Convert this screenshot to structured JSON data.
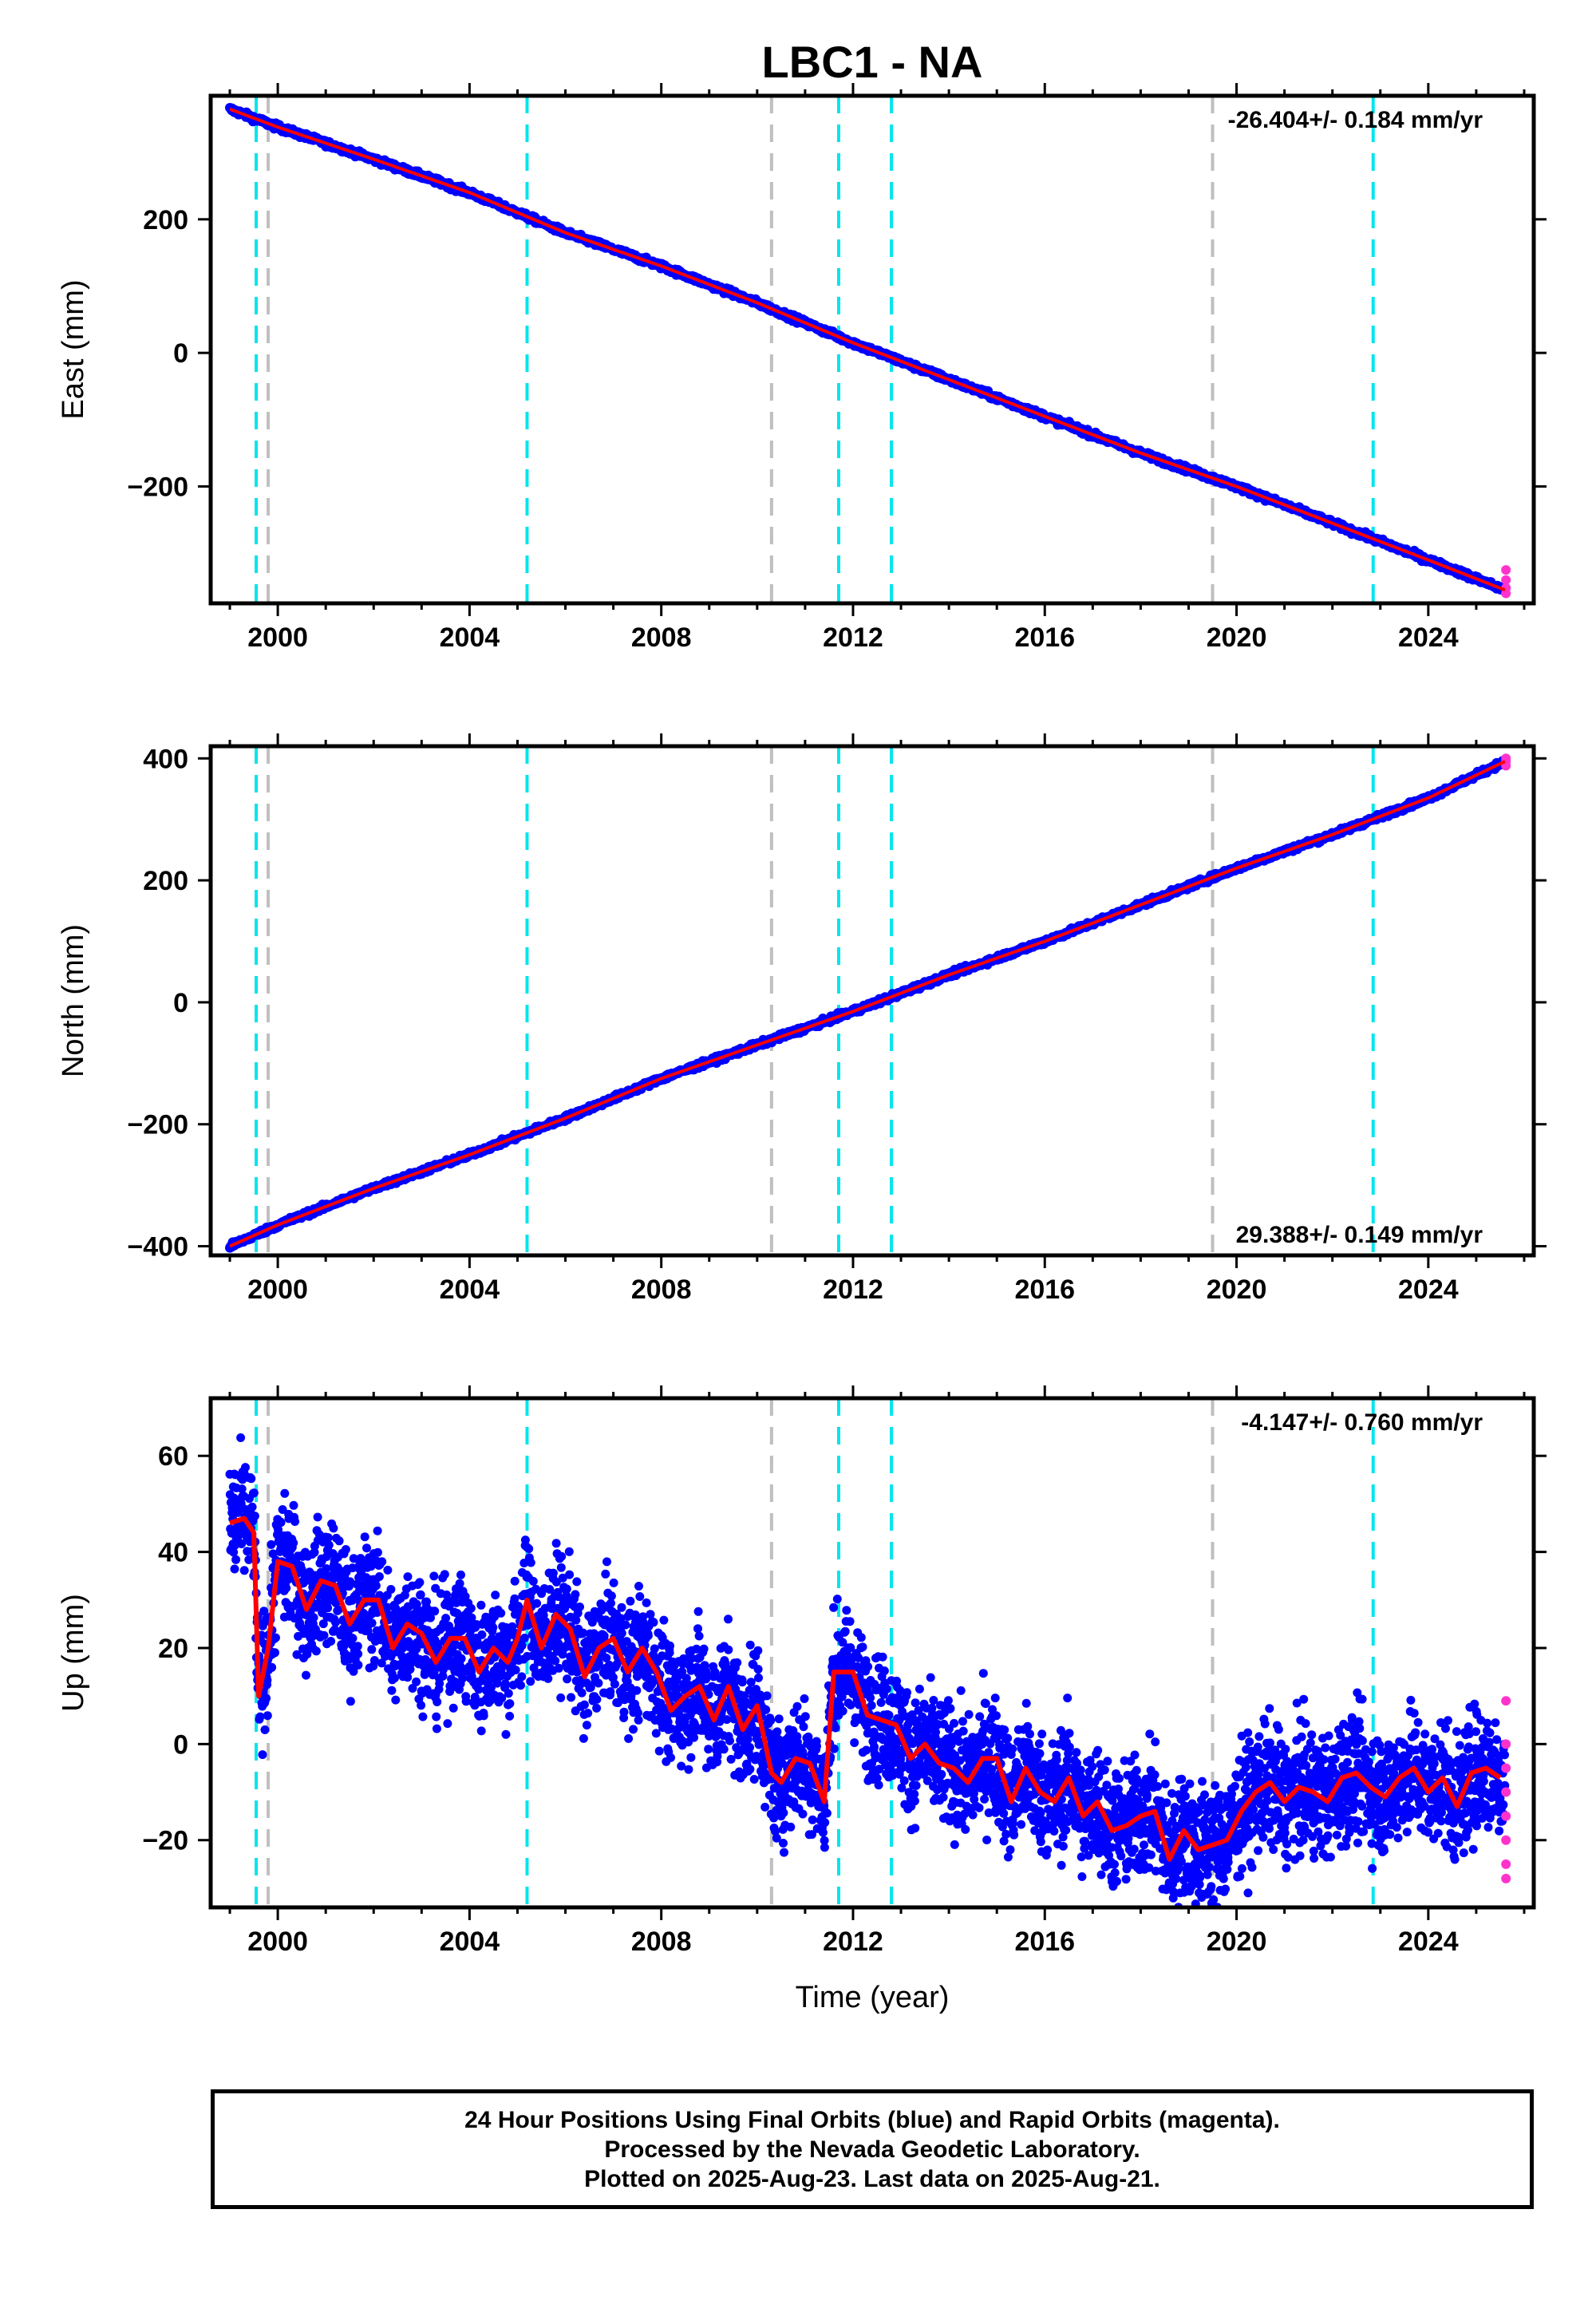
{
  "title": "LBC1 - NA",
  "colors": {
    "final_orbits": "#0000ff",
    "rapid_orbits": "#ff33cc",
    "model_fit": "#ff0000",
    "antenna_change": "#00e5ee",
    "equipment_change": "#bfbfbf"
  },
  "x_axis": {
    "label": "Time (year)",
    "range": [
      1998.6,
      2026.2
    ],
    "ticks": [
      "2000",
      "2004",
      "2008",
      "2012",
      "2016",
      "2020",
      "2024"
    ],
    "tick_values": [
      2000,
      2004,
      2008,
      2012,
      2016,
      2020,
      2024
    ]
  },
  "event_lines": {
    "cyan": [
      1999.55,
      2005.2,
      2011.7,
      2012.8,
      2022.85
    ],
    "gray": [
      1999.8,
      2010.3,
      2019.5
    ]
  },
  "footer": {
    "line1": "24 Hour Positions Using Final Orbits (blue) and Rapid Orbits (magenta).",
    "line2": "Processed by the Nevada Geodetic Laboratory.",
    "line3": "Plotted on 2025-Aug-23. Last data on 2025-Aug-21."
  },
  "chart_data": [
    {
      "type": "scatter",
      "ylabel": "East (mm)",
      "ylim": [
        -375,
        385
      ],
      "yticks": [
        -200,
        0,
        200
      ],
      "ytick_labels": [
        "−200",
        "0",
        "200"
      ],
      "rate_text": "-26.404+/- 0.184 mm/yr",
      "rate_position": "top-right",
      "trend": {
        "start": [
          1999.0,
          365
        ],
        "end": [
          2025.6,
          -355
        ]
      },
      "noise_amplitude": 3,
      "series": [
        {
          "x": [
            1999.0,
            2000,
            2002,
            2004,
            2006,
            2008,
            2010,
            2012,
            2014,
            2016,
            2018,
            2020,
            2022,
            2024,
            2025.6
          ],
          "y": [
            365,
            338,
            290,
            240,
            180,
            130,
            75,
            15,
            -40,
            -95,
            -150,
            -200,
            -255,
            -310,
            -355
          ]
        }
      ],
      "rapid": {
        "x": 2025.62,
        "y": [
          -325,
          -340,
          -352,
          -360
        ]
      }
    },
    {
      "type": "scatter",
      "ylabel": "North (mm)",
      "ylim": [
        -415,
        420
      ],
      "yticks": [
        -400,
        -200,
        0,
        200,
        400
      ],
      "ytick_labels": [
        "−400",
        "−200",
        "0",
        "200",
        "400"
      ],
      "rate_text": "29.388+/- 0.149 mm/yr",
      "rate_position": "bottom-right",
      "trend": {
        "start": [
          1999.0,
          -400
        ],
        "end": [
          2025.6,
          395
        ]
      },
      "noise_amplitude": 3,
      "series": [
        {
          "x": [
            1999.0,
            2000,
            2002,
            2004,
            2006,
            2008,
            2010,
            2012,
            2014,
            2016,
            2018,
            2020,
            2022,
            2024,
            2025.6
          ],
          "y": [
            -400,
            -365,
            -305,
            -250,
            -190,
            -125,
            -70,
            -15,
            45,
            100,
            160,
            220,
            275,
            335,
            395
          ]
        }
      ],
      "rapid": {
        "x": 2025.62,
        "y": [
          388,
          395,
          400
        ]
      }
    },
    {
      "type": "scatter",
      "ylabel": "Up (mm)",
      "ylim": [
        -34,
        72
      ],
      "yticks": [
        -20,
        0,
        20,
        40,
        60
      ],
      "ytick_labels": [
        "−20",
        "0",
        "20",
        "40",
        "60"
      ],
      "rate_text": "-4.147+/- 0.760 mm/yr",
      "rate_position": "top-right",
      "noise_amplitude": 9,
      "model": {
        "x": [
          1999.0,
          1999.3,
          1999.5,
          1999.6,
          1999.8,
          2000.0,
          2000.3,
          2000.6,
          2000.9,
          2001.2,
          2001.5,
          2001.8,
          2002.1,
          2002.4,
          2002.7,
          2003.0,
          2003.3,
          2003.6,
          2003.9,
          2004.2,
          2004.5,
          2004.8,
          2005.0,
          2005.2,
          2005.5,
          2005.8,
          2006.1,
          2006.4,
          2006.7,
          2007.0,
          2007.3,
          2007.6,
          2007.9,
          2008.2,
          2008.5,
          2008.8,
          2009.1,
          2009.4,
          2009.7,
          2010.0,
          2010.3,
          2010.5,
          2010.8,
          2011.1,
          2011.4,
          2011.6,
          2011.7,
          2012.0,
          2012.3,
          2012.6,
          2012.9,
          2013.2,
          2013.5,
          2013.8,
          2014.1,
          2014.4,
          2014.7,
          2015.0,
          2015.3,
          2015.6,
          2015.9,
          2016.2,
          2016.5,
          2016.8,
          2017.1,
          2017.4,
          2017.7,
          2018.0,
          2018.3,
          2018.6,
          2018.9,
          2019.2,
          2019.5,
          2019.8,
          2020.1,
          2020.4,
          2020.7,
          2021.0,
          2021.3,
          2021.6,
          2021.9,
          2022.2,
          2022.5,
          2022.8,
          2023.1,
          2023.4,
          2023.7,
          2024.0,
          2024.3,
          2024.6,
          2024.9,
          2025.2,
          2025.5
        ],
        "y": [
          46,
          47,
          44,
          10,
          20,
          38,
          37,
          28,
          34,
          33,
          25,
          30,
          30,
          20,
          25,
          23,
          17,
          22,
          22,
          15,
          20,
          17,
          22,
          30,
          20,
          27,
          24,
          14,
          20,
          22,
          15,
          20,
          15,
          7,
          10,
          12,
          5,
          12,
          3,
          8,
          -6,
          -8,
          -3,
          -4,
          -12,
          15,
          15,
          15,
          6,
          5,
          4,
          -3,
          0,
          -4,
          -5,
          -8,
          -3,
          -3,
          -12,
          -5,
          -10,
          -12,
          -7,
          -15,
          -12,
          -18,
          -17,
          -15,
          -14,
          -24,
          -18,
          -22,
          -21,
          -20,
          -14,
          -10,
          -8,
          -12,
          -9,
          -10,
          -12,
          -7,
          -6,
          -9,
          -11,
          -7,
          -5,
          -10,
          -7,
          -13,
          -6,
          -5,
          -7
        ]
      },
      "series": [
        {
          "x": [
            1999.0,
            2000,
            2002,
            2004,
            2006,
            2008,
            2010,
            2012,
            2014,
            2016,
            2018,
            2020,
            2022,
            2024,
            2025.6
          ],
          "y": [
            48,
            35,
            28,
            22,
            25,
            15,
            3,
            8,
            -3,
            -10,
            -18,
            -12,
            -7,
            -6,
            -8
          ]
        }
      ],
      "rapid": {
        "x": 2025.62,
        "y": [
          9,
          0,
          -5,
          -10,
          -15,
          -20,
          -25,
          -28
        ]
      }
    }
  ]
}
